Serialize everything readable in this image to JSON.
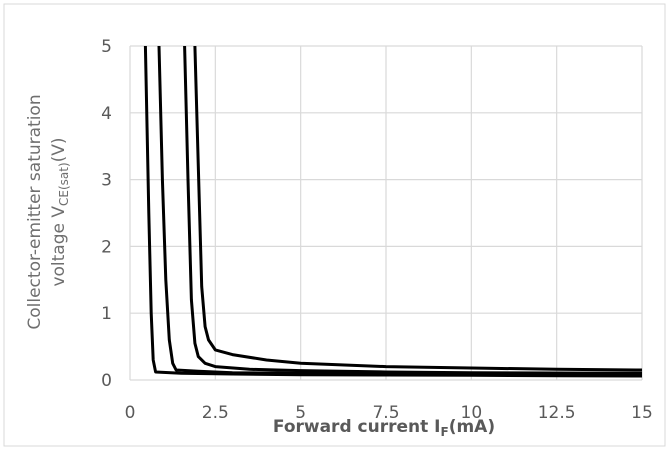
{
  "chart_data": {
    "type": "line",
    "title": "",
    "xlabel": "Forward current I",
    "xlabel_sub": "F",
    "xlabel_unit": "(mA)",
    "ylabel_line1": "Collector-emitter saturation",
    "ylabel_line2_prefix": "voltage V",
    "ylabel_line2_sub": "CE(sat)",
    "ylabel_line2_unit": "(V)",
    "xlim": [
      0,
      15
    ],
    "ylim": [
      0,
      5
    ],
    "xticks": [
      "0",
      "2.5",
      "5",
      "7.5",
      "10",
      "12.5",
      "15"
    ],
    "yticks": [
      "0",
      "1",
      "2",
      "3",
      "4",
      "5"
    ],
    "grid": true,
    "legend": "none",
    "line_color": "#000000",
    "grid_color": "#d9d9d9",
    "series": [
      {
        "x": [
          0.45,
          0.55,
          0.62,
          0.68,
          0.75,
          1.5,
          3,
          5,
          7.5,
          10,
          12.5,
          15
        ],
        "y": [
          5,
          2.5,
          1.0,
          0.3,
          0.12,
          0.1,
          0.09,
          0.08,
          0.075,
          0.07,
          0.065,
          0.06
        ]
      },
      {
        "x": [
          0.85,
          0.95,
          1.05,
          1.15,
          1.25,
          1.35,
          2,
          3,
          5,
          7.5,
          10,
          12.5,
          15
        ],
        "y": [
          5,
          3.0,
          1.5,
          0.6,
          0.25,
          0.15,
          0.13,
          0.11,
          0.1,
          0.09,
          0.085,
          0.08,
          0.075
        ]
      },
      {
        "x": [
          1.6,
          1.7,
          1.8,
          1.9,
          2.0,
          2.2,
          2.5,
          3.5,
          5,
          7.5,
          10,
          12.5,
          15
        ],
        "y": [
          5,
          3.0,
          1.2,
          0.55,
          0.35,
          0.25,
          0.2,
          0.16,
          0.14,
          0.12,
          0.11,
          0.105,
          0.1
        ]
      },
      {
        "x": [
          1.9,
          2.0,
          2.1,
          2.2,
          2.3,
          2.5,
          3,
          4,
          5,
          7.5,
          10,
          12.5,
          15
        ],
        "y": [
          5,
          3.2,
          1.4,
          0.8,
          0.6,
          0.45,
          0.38,
          0.3,
          0.25,
          0.2,
          0.18,
          0.16,
          0.15
        ]
      }
    ]
  }
}
